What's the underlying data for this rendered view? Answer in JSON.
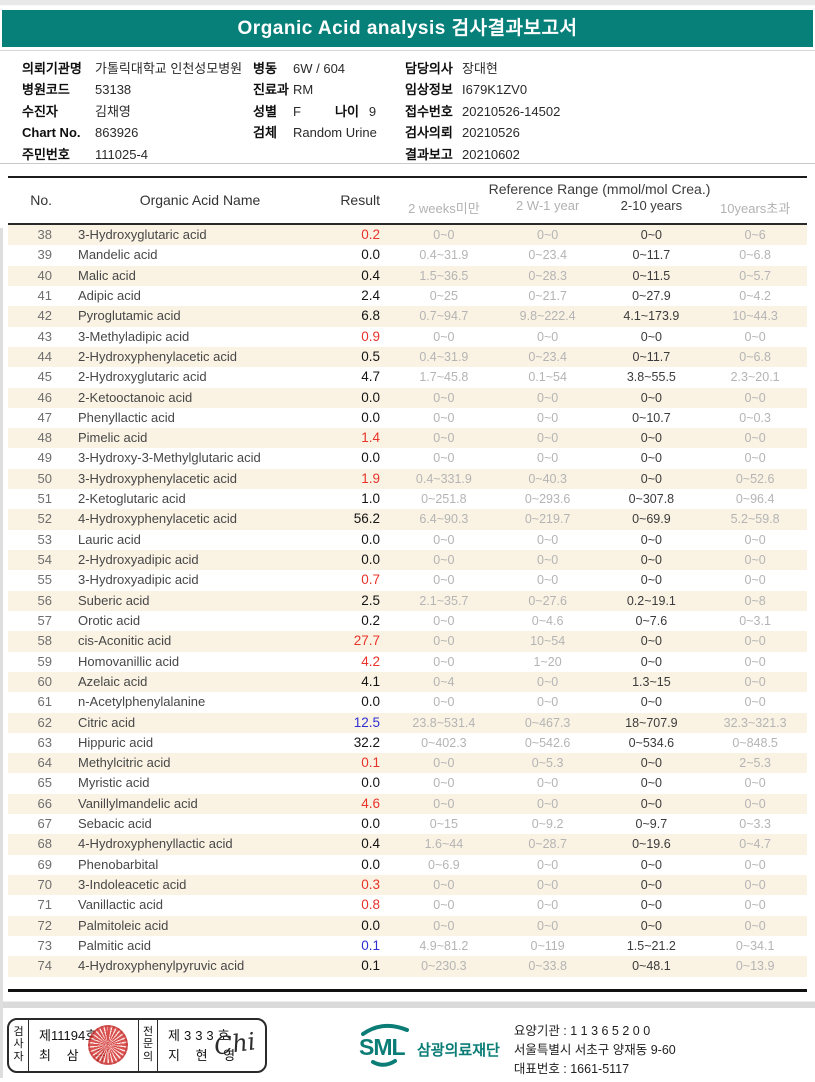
{
  "report": {
    "title": "Organic Acid analysis 검사결과보고서",
    "info": {
      "left": [
        {
          "label": "의뢰기관명",
          "value": "가톨릭대학교 인천성모병원"
        },
        {
          "label": "병원코드",
          "value": "53138"
        },
        {
          "label": "수진자",
          "value": "김채영"
        },
        {
          "label": "Chart No.",
          "value": "863926"
        },
        {
          "label": "주민번호",
          "value": "111025-4"
        }
      ],
      "middle": [
        {
          "label": "병동",
          "value": "6W / 604"
        },
        {
          "label": "진료과",
          "value": "RM"
        },
        {
          "label": "성별",
          "value": "F",
          "label2": "나이",
          "value2": "9"
        },
        {
          "label": "검체",
          "value": "Random Urine"
        }
      ],
      "right": [
        {
          "label": "담당의사",
          "value": "장대현"
        },
        {
          "label": "임상정보",
          "value": "I679K1ZV0"
        },
        {
          "label": "접수번호",
          "value": "20210526-14502"
        },
        {
          "label": "검사의뢰",
          "value": "20210526"
        },
        {
          "label": "결과보고",
          "value": "20210602"
        }
      ]
    },
    "table": {
      "columns": {
        "no": "No.",
        "name": "Organic Acid Name",
        "result": "Result",
        "ref_group": "Reference Range (mmol/mol Crea.)",
        "ranges": [
          "2 weeks미만",
          "2 W-1 year",
          "2-10 years",
          "10years초과"
        ],
        "highlight_range_index": 2
      },
      "rows": [
        {
          "no": "38",
          "name": "3-Hydroxyglutaric acid",
          "result": "0.2",
          "flag": "high",
          "ranges": [
            "0~0",
            "0~0",
            "0~0",
            "0~6"
          ]
        },
        {
          "no": "39",
          "name": "Mandelic acid",
          "result": "0.0",
          "flag": "normal",
          "ranges": [
            "0.4~31.9",
            "0~23.4",
            "0~11.7",
            "0~6.8"
          ]
        },
        {
          "no": "40",
          "name": "Malic acid",
          "result": "0.4",
          "flag": "normal",
          "ranges": [
            "1.5~36.5",
            "0~28.3",
            "0~11.5",
            "0~5.7"
          ]
        },
        {
          "no": "41",
          "name": "Adipic acid",
          "result": "2.4",
          "flag": "normal",
          "ranges": [
            "0~25",
            "0~21.7",
            "0~27.9",
            "0~4.2"
          ]
        },
        {
          "no": "42",
          "name": "Pyroglutamic acid",
          "result": "6.8",
          "flag": "normal",
          "ranges": [
            "0.7~94.7",
            "9.8~222.4",
            "4.1~173.9",
            "10~44.3"
          ]
        },
        {
          "no": "43",
          "name": "3-Methyladipic acid",
          "result": "0.9",
          "flag": "high",
          "ranges": [
            "0~0",
            "0~0",
            "0~0",
            "0~0"
          ]
        },
        {
          "no": "44",
          "name": "2-Hydroxyphenylacetic acid",
          "result": "0.5",
          "flag": "normal",
          "ranges": [
            "0.4~31.9",
            "0~23.4",
            "0~11.7",
            "0~6.8"
          ]
        },
        {
          "no": "45",
          "name": "2-Hydroxyglutaric acid",
          "result": "4.7",
          "flag": "normal",
          "ranges": [
            "1.7~45.8",
            "0.1~54",
            "3.8~55.5",
            "2.3~20.1"
          ]
        },
        {
          "no": "46",
          "name": "2-Ketooctanoic acid",
          "result": "0.0",
          "flag": "normal",
          "ranges": [
            "0~0",
            "0~0",
            "0~0",
            "0~0"
          ]
        },
        {
          "no": "47",
          "name": "Phenyllactic acid",
          "result": "0.0",
          "flag": "normal",
          "ranges": [
            "0~0",
            "0~0",
            "0~10.7",
            "0~0.3"
          ]
        },
        {
          "no": "48",
          "name": "Pimelic acid",
          "result": "1.4",
          "flag": "high",
          "ranges": [
            "0~0",
            "0~0",
            "0~0",
            "0~0"
          ]
        },
        {
          "no": "49",
          "name": "3-Hydroxy-3-Methylglutaric acid",
          "result": "0.0",
          "flag": "normal",
          "ranges": [
            "0~0",
            "0~0",
            "0~0",
            "0~0"
          ]
        },
        {
          "no": "50",
          "name": "3-Hydroxyphenylacetic acid",
          "result": "1.9",
          "flag": "high",
          "ranges": [
            "0.4~331.9",
            "0~40.3",
            "0~0",
            "0~52.6"
          ]
        },
        {
          "no": "51",
          "name": "2-Ketoglutaric acid",
          "result": "1.0",
          "flag": "normal",
          "ranges": [
            "0~251.8",
            "0~293.6",
            "0~307.8",
            "0~96.4"
          ]
        },
        {
          "no": "52",
          "name": "4-Hydroxyphenylacetic acid",
          "result": "56.2",
          "flag": "normal",
          "ranges": [
            "6.4~90.3",
            "0~219.7",
            "0~69.9",
            "5.2~59.8"
          ]
        },
        {
          "no": "53",
          "name": "Lauric acid",
          "result": "0.0",
          "flag": "normal",
          "ranges": [
            "0~0",
            "0~0",
            "0~0",
            "0~0"
          ]
        },
        {
          "no": "54",
          "name": "2-Hydroxyadipic acid",
          "result": "0.0",
          "flag": "normal",
          "ranges": [
            "0~0",
            "0~0",
            "0~0",
            "0~0"
          ]
        },
        {
          "no": "55",
          "name": "3-Hydroxyadipic acid",
          "result": "0.7",
          "flag": "high",
          "ranges": [
            "0~0",
            "0~0",
            "0~0",
            "0~0"
          ]
        },
        {
          "no": "56",
          "name": "Suberic acid",
          "result": "2.5",
          "flag": "normal",
          "ranges": [
            "2.1~35.7",
            "0~27.6",
            "0.2~19.1",
            "0~8"
          ]
        },
        {
          "no": "57",
          "name": "Orotic acid",
          "result": "0.2",
          "flag": "normal",
          "ranges": [
            "0~0",
            "0~4.6",
            "0~7.6",
            "0~3.1"
          ]
        },
        {
          "no": "58",
          "name": "cis-Aconitic acid",
          "result": "27.7",
          "flag": "high",
          "ranges": [
            "0~0",
            "10~54",
            "0~0",
            "0~0"
          ]
        },
        {
          "no": "59",
          "name": "Homovanillic acid",
          "result": "4.2",
          "flag": "high",
          "ranges": [
            "0~0",
            "1~20",
            "0~0",
            "0~0"
          ]
        },
        {
          "no": "60",
          "name": "Azelaic acid",
          "result": "4.1",
          "flag": "normal",
          "ranges": [
            "0~4",
            "0~0",
            "1.3~15",
            "0~0"
          ]
        },
        {
          "no": "61",
          "name": "n-Acetylphenylalanine",
          "result": "0.0",
          "flag": "normal",
          "ranges": [
            "0~0",
            "0~0",
            "0~0",
            "0~0"
          ]
        },
        {
          "no": "62",
          "name": "Citric acid",
          "result": "12.5",
          "flag": "low",
          "ranges": [
            "23.8~531.4",
            "0~467.3",
            "18~707.9",
            "32.3~321.3"
          ]
        },
        {
          "no": "63",
          "name": "Hippuric acid",
          "result": "32.2",
          "flag": "normal",
          "ranges": [
            "0~402.3",
            "0~542.6",
            "0~534.6",
            "0~848.5"
          ]
        },
        {
          "no": "64",
          "name": "Methylcitric acid",
          "result": "0.1",
          "flag": "high",
          "ranges": [
            "0~0",
            "0~5.3",
            "0~0",
            "2~5.3"
          ]
        },
        {
          "no": "65",
          "name": "Myristic acid",
          "result": "0.0",
          "flag": "normal",
          "ranges": [
            "0~0",
            "0~0",
            "0~0",
            "0~0"
          ]
        },
        {
          "no": "66",
          "name": "Vanillylmandelic acid",
          "result": "4.6",
          "flag": "high",
          "ranges": [
            "0~0",
            "0~0",
            "0~0",
            "0~0"
          ]
        },
        {
          "no": "67",
          "name": "Sebacic acid",
          "result": "0.0",
          "flag": "normal",
          "ranges": [
            "0~15",
            "0~9.2",
            "0~9.7",
            "0~3.3"
          ]
        },
        {
          "no": "68",
          "name": "4-Hydroxyphenyllactic acid",
          "result": "0.4",
          "flag": "normal",
          "ranges": [
            "1.6~44",
            "0~28.7",
            "0~19.6",
            "0~4.7"
          ]
        },
        {
          "no": "69",
          "name": "Phenobarbital",
          "result": "0.0",
          "flag": "normal",
          "ranges": [
            "0~6.9",
            "0~0",
            "0~0",
            "0~0"
          ]
        },
        {
          "no": "70",
          "name": "3-Indoleacetic acid",
          "result": "0.3",
          "flag": "high",
          "ranges": [
            "0~0",
            "0~0",
            "0~0",
            "0~0"
          ]
        },
        {
          "no": "71",
          "name": "Vanillactic acid",
          "result": "0.8",
          "flag": "high",
          "ranges": [
            "0~0",
            "0~0",
            "0~0",
            "0~0"
          ]
        },
        {
          "no": "72",
          "name": "Palmitoleic acid",
          "result": "0.0",
          "flag": "normal",
          "ranges": [
            "0~0",
            "0~0",
            "0~0",
            "0~0"
          ]
        },
        {
          "no": "73",
          "name": "Palmitic acid",
          "result": "0.1",
          "flag": "low",
          "ranges": [
            "4.9~81.2",
            "0~119",
            "1.5~21.2",
            "0~34.1"
          ]
        },
        {
          "no": "74",
          "name": "4-Hydroxyphenylpyruvic acid",
          "result": "0.1",
          "flag": "normal",
          "ranges": [
            "0~230.3",
            "0~33.8",
            "0~48.1",
            "0~13.9"
          ]
        }
      ]
    },
    "footer": {
      "examiner": {
        "role": "검사자",
        "cert": "제11194호",
        "name": "최 삼 규"
      },
      "specialist": {
        "role": "전문의",
        "cert": "제333호",
        "name": "지 현 영",
        "signature": "Chi"
      },
      "org": {
        "logo": "SML",
        "name": "삼광의료재단",
        "lines": [
          "요양기관 : 1 1 3 6 5 2 0 0",
          "서울특별시 서초구 양재동 9-60",
          "대표번호 : 1661-5117"
        ]
      }
    },
    "colors": {
      "accent": "#08807a",
      "abnormal_high": "#e8332a",
      "abnormal_low": "#2f2fd3",
      "row_alt": "#faf3e4"
    }
  }
}
